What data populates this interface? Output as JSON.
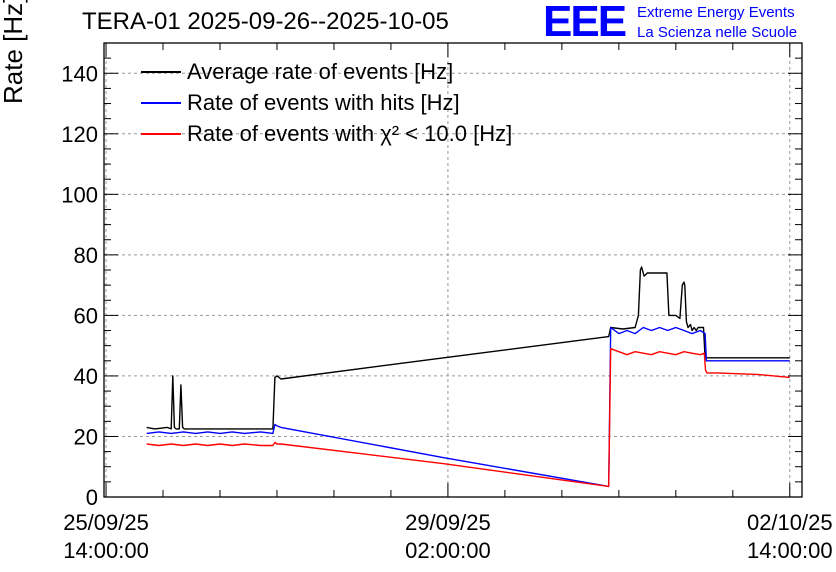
{
  "header": {
    "title": "TERA-01 2025-09-26--2025-10-05",
    "logo_text": "EEE",
    "logo_line1": "Extreme Energy Events",
    "logo_line2": "La Scienza nelle Scuole"
  },
  "colors": {
    "logo": "#0000ff",
    "black_series": "#000000",
    "blue_series": "#0000ff",
    "red_series": "#ff0000",
    "grid": "#9a9a9a"
  },
  "chart_data": {
    "type": "line",
    "title": "TERA-01 2025-09-26--2025-10-05",
    "xlabel": "",
    "ylabel": "Rate [Hz]",
    "x_unit": "hours since 25/09/25 14:00:00",
    "xlim": [
      -0.5,
      171
    ],
    "ylim": [
      0,
      150
    ],
    "y_ticks": [
      0,
      20,
      40,
      60,
      80,
      100,
      120,
      140
    ],
    "x_ticks": [
      {
        "x": 0,
        "line1": "25/09/25",
        "line2": "14:00:00"
      },
      {
        "x": 84,
        "line1": "29/09/25",
        "line2": "02:00:00"
      },
      {
        "x": 168,
        "line1": "02/10/25",
        "line2": "14:00:00"
      }
    ],
    "grid": true,
    "legend_position": "top-left",
    "series": [
      {
        "name": "Average rate of events [Hz]",
        "color": "#000000",
        "x": [
          10,
          12,
          15,
          16,
          16.4,
          16.8,
          17.2,
          18,
          18.4,
          18.8,
          19.2,
          22,
          25,
          28,
          31,
          34,
          38,
          41,
          41.5,
          42,
          43,
          83,
          123.5,
          124,
          127,
          130,
          130.8,
          131.3,
          131.6,
          132.2,
          133,
          134,
          135,
          136,
          137,
          137.8,
          138.3,
          140,
          141,
          141.6,
          142,
          142.2,
          142.6,
          143,
          143.6,
          144,
          144.5,
          145,
          145.5,
          146.2,
          146.8,
          147.2,
          147.5,
          155,
          168
        ],
        "y": [
          23,
          22.5,
          23,
          22.5,
          40,
          23,
          22.5,
          22.5,
          37,
          23,
          22.5,
          22.5,
          22.5,
          22.5,
          22.5,
          22.5,
          22.5,
          22.5,
          39.5,
          40,
          39,
          46,
          53,
          56,
          55.5,
          56,
          60,
          75,
          76,
          73,
          74,
          74,
          74,
          74,
          74,
          74,
          60,
          60,
          59,
          70,
          71,
          70,
          58,
          56,
          57,
          55,
          56,
          55,
          56,
          56,
          56,
          46,
          46,
          46,
          46
        ]
      },
      {
        "name": "Rate of events with hits [Hz]",
        "color": "#0000ff",
        "x": [
          10,
          13,
          16,
          19,
          22,
          25,
          28,
          31,
          34,
          38,
          41,
          41.5,
          42,
          43,
          83,
          123.5,
          124,
          126,
          128,
          130,
          132,
          134,
          136,
          138,
          140,
          142,
          144,
          146,
          147.2,
          147.5,
          155,
          168
        ],
        "y": [
          21,
          21.5,
          21,
          21.5,
          21,
          21.5,
          21,
          21.5,
          21,
          21.5,
          21,
          24,
          23.5,
          23,
          13,
          3.5,
          56,
          54,
          55,
          54,
          56,
          55,
          56,
          55,
          56,
          55,
          54,
          55,
          54,
          45,
          45,
          45
        ]
      },
      {
        "name": "Rate of events with χ² < 10.0 [Hz]",
        "color": "#ff0000",
        "x": [
          10,
          13,
          16,
          19,
          22,
          25,
          28,
          31,
          34,
          38,
          41,
          41.5,
          42,
          43,
          83,
          123.5,
          124,
          126,
          128,
          130,
          132,
          134,
          136,
          138,
          140,
          142,
          144,
          146,
          147,
          147.3,
          147.6,
          150,
          160,
          168
        ],
        "y": [
          17.5,
          17,
          17.5,
          17,
          17.5,
          17,
          17.5,
          17,
          17.5,
          17,
          17,
          18,
          17.5,
          17.5,
          11,
          3.5,
          49,
          48,
          47,
          48,
          47.5,
          47,
          48,
          47.5,
          47,
          48,
          47.5,
          47,
          47.5,
          42,
          41,
          41,
          40.5,
          39.5
        ]
      }
    ]
  }
}
